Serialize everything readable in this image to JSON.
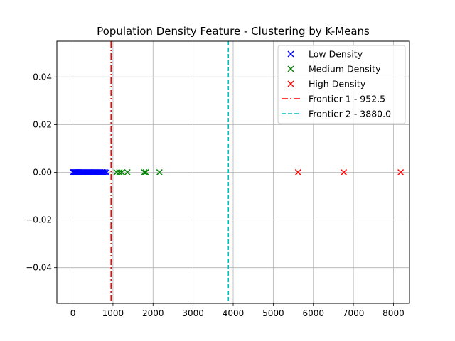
{
  "chart_data": {
    "type": "scatter",
    "title": "Population Density Feature - Clustering by K-Means",
    "xlabel": "",
    "ylabel": "",
    "xlim": [
      -400,
      8400
    ],
    "ylim": [
      -0.055,
      0.055
    ],
    "grid": true,
    "legend_position": "top-right",
    "xticks": [
      0,
      1000,
      2000,
      3000,
      4000,
      5000,
      6000,
      7000,
      8000
    ],
    "xtick_labels": [
      "0",
      "1000",
      "2000",
      "3000",
      "4000",
      "5000",
      "6000",
      "7000",
      "8000"
    ],
    "yticks": [
      0.04,
      0.02,
      0.0,
      -0.02,
      -0.04
    ],
    "ytick_labels": [
      "0.04",
      "0.02",
      "0.00",
      "−0.02",
      "−0.04"
    ],
    "series": [
      {
        "name": "Low Density",
        "color": "#0000ff",
        "marker": "x",
        "x": [
          0,
          10,
          20,
          30,
          40,
          50,
          60,
          70,
          80,
          90,
          100,
          115,
          130,
          145,
          160,
          180,
          200,
          220,
          240,
          260,
          280,
          300,
          320,
          340,
          360,
          380,
          400,
          420,
          440,
          460,
          480,
          500,
          520,
          540,
          560,
          580,
          600,
          620,
          640,
          660,
          690,
          720,
          760,
          800,
          840
        ],
        "y": [
          0,
          0,
          0,
          0,
          0,
          0,
          0,
          0,
          0,
          0,
          0,
          0,
          0,
          0,
          0,
          0,
          0,
          0,
          0,
          0,
          0,
          0,
          0,
          0,
          0,
          0,
          0,
          0,
          0,
          0,
          0,
          0,
          0,
          0,
          0,
          0,
          0,
          0,
          0,
          0,
          0,
          0,
          0,
          0,
          0
        ]
      },
      {
        "name": "Medium Density",
        "color": "#008000",
        "marker": "x",
        "x": [
          1090,
          1160,
          1220,
          1360,
          1780,
          1820,
          2160
        ],
        "y": [
          0,
          0,
          0,
          0,
          0,
          0,
          0
        ]
      },
      {
        "name": "High Density",
        "color": "#ff0000",
        "marker": "x",
        "x": [
          5620,
          6760,
          8180
        ],
        "y": [
          0,
          0,
          0
        ]
      }
    ],
    "vlines": [
      {
        "name": "Frontier 1 - 952.5",
        "x": 952.5,
        "color": "#ff0000",
        "style": "dashdot"
      },
      {
        "name": "Frontier 2 - 3880.0",
        "x": 3880.0,
        "color": "#00bfbf",
        "style": "dashed"
      }
    ]
  }
}
